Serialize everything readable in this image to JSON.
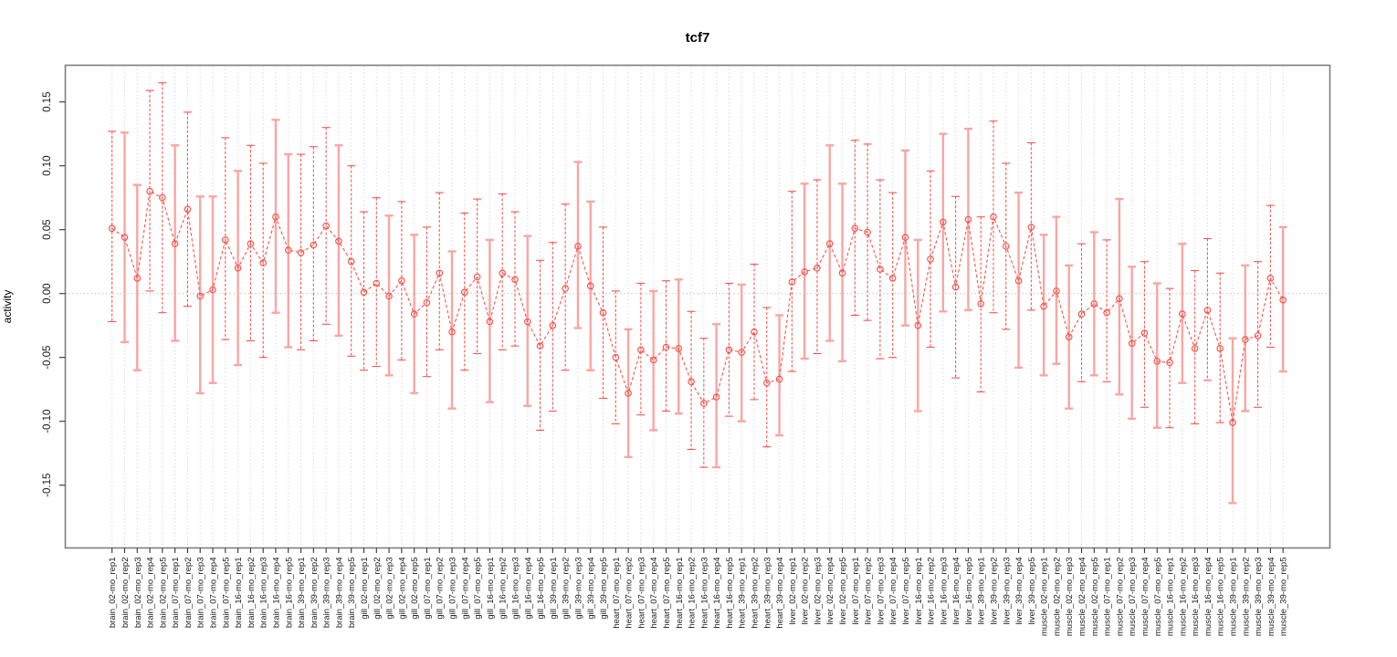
{
  "figure": {
    "title": "tcf7",
    "ylabel": "activity"
  },
  "chart_data": {
    "type": "line",
    "title": "tcf7",
    "xlabel": "",
    "ylabel": "activity",
    "ylim": [
      -0.185,
      0.179
    ],
    "y_ticks": [
      -0.15,
      -0.1,
      -0.05,
      0.0,
      0.05,
      0.1,
      0.15
    ],
    "y_tick_labels": [
      "-0.15",
      "-0.10",
      "-0.05",
      "0.00",
      "0.05",
      "0.10",
      "0.15"
    ],
    "grid": "dotted vertical gridline per category; dotted horizontal line at y=0; no legend",
    "marker": "open-circle",
    "categories": [
      "brain_02-mo_rep1",
      "brain_02-mo_rep2",
      "brain_02-mo_rep3",
      "brain_02-mo_rep4",
      "brain_02-mo_rep5",
      "brain_07-mo_rep1",
      "brain_07-mo_rep2",
      "brain_07-mo_rep3",
      "brain_07-mo_rep4",
      "brain_07-mo_rep5",
      "brain_16-mo_rep1",
      "brain_16-mo_rep2",
      "brain_16-mo_rep3",
      "brain_16-mo_rep4",
      "brain_16-mo_rep5",
      "brain_39-mo_rep1",
      "brain_39-mo_rep2",
      "brain_39-mo_rep3",
      "brain_39-mo_rep4",
      "brain_39-mo_rep5",
      "gill_02-mo_rep1",
      "gill_02-mo_rep2",
      "gill_02-mo_rep3",
      "gill_02-mo_rep4",
      "gill_02-mo_rep5",
      "gill_07-mo_rep1",
      "gill_07-mo_rep2",
      "gill_07-mo_rep3",
      "gill_07-mo_rep4",
      "gill_07-mo_rep5",
      "gill_16-mo_rep1",
      "gill_16-mo_rep2",
      "gill_16-mo_rep3",
      "gill_16-mo_rep4",
      "gill_16-mo_rep5",
      "gill_39-mo_rep1",
      "gill_39-mo_rep2",
      "gill_39-mo_rep3",
      "gill_39-mo_rep4",
      "gill_39-mo_rep5",
      "heart_07-mo_rep1",
      "heart_07-mo_rep2",
      "heart_07-mo_rep3",
      "heart_07-mo_rep4",
      "heart_07-mo_rep5",
      "heart_16-mo_rep1",
      "heart_16-mo_rep2",
      "heart_16-mo_rep3",
      "heart_16-mo_rep4",
      "heart_16-mo_rep5",
      "heart_39-mo_rep1",
      "heart_39-mo_rep2",
      "heart_39-mo_rep3",
      "heart_39-mo_rep4",
      "liver_02-mo_rep1",
      "liver_02-mo_rep2",
      "liver_02-mo_rep3",
      "liver_02-mo_rep4",
      "liver_02-mo_rep5",
      "liver_07-mo_rep1",
      "liver_07-mo_rep2",
      "liver_07-mo_rep3",
      "liver_07-mo_rep4",
      "liver_07-mo_rep5",
      "liver_16-mo_rep1",
      "liver_16-mo_rep2",
      "liver_16-mo_rep3",
      "liver_16-mo_rep4",
      "liver_16-mo_rep5",
      "liver_39-mo_rep1",
      "liver_39-mo_rep2",
      "liver_39-mo_rep3",
      "liver_39-mo_rep4",
      "liver_39-mo_rep5",
      "muscle_02-mo_rep1",
      "muscle_02-mo_rep2",
      "muscle_02-mo_rep3",
      "muscle_02-mo_rep4",
      "muscle_02-mo_rep5",
      "muscle_07-mo_rep1",
      "muscle_07-mo_rep2",
      "muscle_07-mo_rep3",
      "muscle_07-mo_rep4",
      "muscle_07-mo_rep5",
      "muscle_16-mo_rep1",
      "muscle_16-mo_rep2",
      "muscle_16-mo_rep3",
      "muscle_16-mo_rep4",
      "muscle_16-mo_rep5",
      "muscle_39-mo_rep1",
      "muscle_39-mo_rep2",
      "muscle_39-mo_rep3",
      "muscle_39-mo_rep4",
      "muscle_39-mo_rep5"
    ],
    "series": [
      {
        "name": "activity",
        "values": [
          0.051,
          0.044,
          0.012,
          0.08,
          0.075,
          0.039,
          0.066,
          -0.002,
          0.003,
          0.042,
          0.02,
          0.039,
          0.024,
          0.06,
          0.034,
          0.032,
          0.038,
          0.053,
          0.041,
          0.025,
          0.001,
          0.008,
          -0.002,
          0.01,
          -0.016,
          -0.007,
          0.016,
          -0.03,
          0.001,
          0.013,
          -0.022,
          0.016,
          0.011,
          -0.022,
          -0.041,
          -0.025,
          0.004,
          0.037,
          0.006,
          -0.015,
          -0.05,
          -0.078,
          -0.044,
          -0.052,
          -0.042,
          -0.043,
          -0.069,
          -0.086,
          -0.081,
          -0.044,
          -0.046,
          -0.03,
          -0.07,
          -0.067,
          0.009,
          0.017,
          0.02,
          0.039,
          0.016,
          0.051,
          0.048,
          0.019,
          0.012,
          0.044,
          -0.025,
          0.027,
          0.056,
          0.005,
          0.058,
          -0.008,
          0.06,
          0.037,
          0.01,
          0.052,
          -0.01,
          0.002,
          -0.034,
          -0.016,
          -0.008,
          -0.015,
          -0.004,
          -0.039,
          -0.031,
          -0.053,
          -0.054,
          -0.016,
          -0.043,
          -0.013,
          -0.043,
          -0.101,
          -0.036,
          -0.033,
          0.012,
          -0.005
        ],
        "err_lo": [
          -0.022,
          -0.038,
          -0.06,
          0.002,
          -0.015,
          -0.037,
          -0.01,
          -0.078,
          -0.07,
          -0.036,
          -0.056,
          -0.037,
          -0.05,
          -0.015,
          -0.042,
          -0.044,
          -0.037,
          -0.024,
          -0.033,
          -0.049,
          -0.06,
          -0.057,
          -0.064,
          -0.052,
          -0.078,
          -0.065,
          -0.044,
          -0.09,
          -0.06,
          -0.047,
          -0.085,
          -0.044,
          -0.041,
          -0.088,
          -0.107,
          -0.092,
          -0.06,
          -0.027,
          -0.06,
          -0.082,
          -0.102,
          -0.128,
          -0.095,
          -0.107,
          -0.092,
          -0.094,
          -0.122,
          -0.136,
          -0.136,
          -0.096,
          -0.1,
          -0.083,
          -0.12,
          -0.111,
          -0.061,
          -0.051,
          -0.047,
          -0.037,
          -0.053,
          -0.017,
          -0.021,
          -0.051,
          -0.05,
          -0.025,
          -0.092,
          -0.042,
          -0.014,
          -0.066,
          -0.013,
          -0.077,
          -0.015,
          -0.028,
          -0.058,
          -0.013,
          -0.064,
          -0.055,
          -0.09,
          -0.069,
          -0.064,
          -0.069,
          -0.079,
          -0.098,
          -0.089,
          -0.105,
          -0.105,
          -0.07,
          -0.102,
          -0.068,
          -0.101,
          -0.164,
          -0.092,
          -0.089,
          -0.042,
          -0.061
        ],
        "err_hi": [
          0.127,
          0.126,
          0.085,
          0.159,
          0.165,
          0.116,
          0.142,
          0.076,
          0.076,
          0.122,
          0.096,
          0.116,
          0.102,
          0.136,
          0.109,
          0.109,
          0.115,
          0.13,
          0.116,
          0.1,
          0.064,
          0.075,
          0.061,
          0.072,
          0.046,
          0.052,
          0.079,
          0.033,
          0.063,
          0.074,
          0.042,
          0.078,
          0.064,
          0.045,
          0.026,
          0.04,
          0.07,
          0.103,
          0.072,
          0.052,
          0.002,
          -0.028,
          0.008,
          0.002,
          0.01,
          0.011,
          -0.014,
          -0.035,
          -0.024,
          0.008,
          0.007,
          0.023,
          -0.011,
          -0.017,
          0.08,
          0.086,
          0.089,
          0.116,
          0.086,
          0.12,
          0.117,
          0.089,
          0.079,
          0.112,
          0.042,
          0.096,
          0.125,
          0.076,
          0.129,
          0.06,
          0.135,
          0.102,
          0.079,
          0.118,
          0.046,
          0.06,
          0.022,
          0.039,
          0.048,
          0.042,
          0.074,
          0.021,
          0.025,
          0.008,
          0.004,
          0.039,
          0.018,
          0.043,
          0.016,
          -0.035,
          0.022,
          0.025,
          0.069,
          0.052
        ],
        "bar_styles": "dssddsdssdsddssdddsdddsdsddsddsddsdddssddsdsdsddsdsddsdsdssddddssdsdsdddsdsssdsdssdsdsdddssdd"
      }
    ],
    "colors": {
      "point_line": "#f4564e",
      "dashed_bar": "#f4564e",
      "solid_bar": "#f9a6a2",
      "gridline": "#dcdcdc",
      "zero_line": "#c4c4c4",
      "plot_border": "#7f7f7f",
      "axis_text": "#1a1a1a",
      "title_text": "#000000"
    }
  }
}
